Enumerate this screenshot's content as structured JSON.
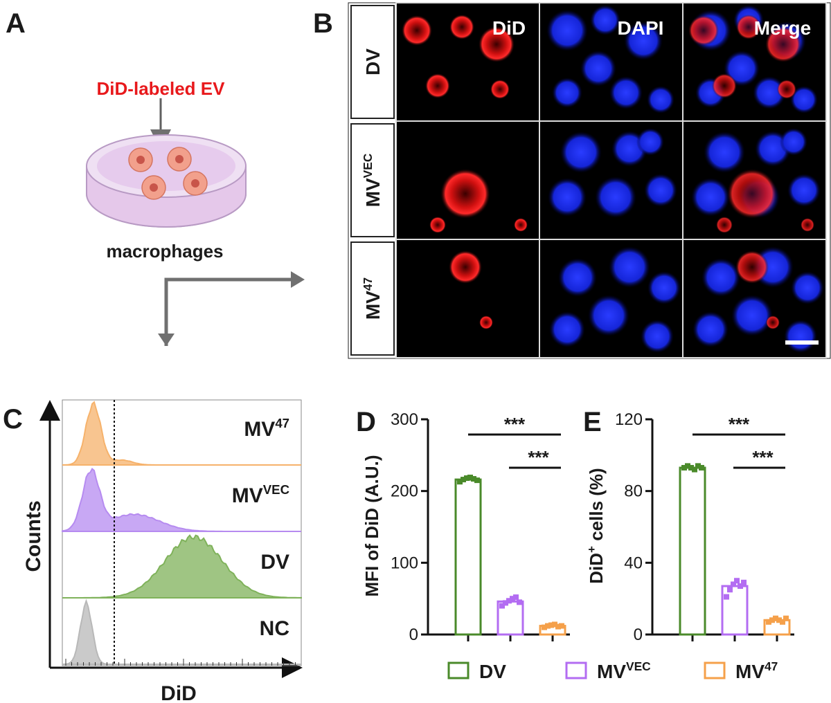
{
  "panels": {
    "A": {
      "label": "A",
      "ev_label": "DiD-labeled EV",
      "cells_label": "macrophages",
      "ev_color": "#e8191c"
    },
    "B": {
      "label": "B",
      "channels": [
        "DiD",
        "DAPI",
        "Merge"
      ],
      "rows": [
        {
          "label": "DV",
          "sup": ""
        },
        {
          "label": "MV",
          "sup": "VEC"
        },
        {
          "label": "MV",
          "sup": "47"
        }
      ]
    },
    "C": {
      "label": "C",
      "ylabel": "Counts",
      "xlabel": "DiD",
      "tracks": [
        {
          "label": "MV",
          "sup": "47",
          "color": "#f6b26b"
        },
        {
          "label": "MV",
          "sup": "VEC",
          "color": "#b68bf0"
        },
        {
          "label": "DV",
          "sup": "",
          "color": "#7fb25a"
        },
        {
          "label": "NC",
          "sup": "",
          "color": "#b8b8b8"
        }
      ]
    },
    "D": {
      "label": "D"
    },
    "E": {
      "label": "E"
    }
  },
  "legend": [
    {
      "label": "DV",
      "sup": "",
      "color": "#4a8a2a"
    },
    {
      "label": "MV",
      "sup": "VEC",
      "color": "#b36cf2"
    },
    {
      "label": "MV",
      "sup": "47",
      "color": "#f5a04a"
    }
  ],
  "chart_data": [
    {
      "panel": "D",
      "type": "bar",
      "ylabel": "MFI of DiD (A.U.)",
      "categories": [
        "DV",
        "MVVEC",
        "MV47"
      ],
      "values": [
        216,
        46,
        12
      ],
      "points": [
        [
          213,
          216,
          218,
          219,
          217,
          215
        ],
        [
          40,
          44,
          47,
          50,
          52,
          45
        ],
        [
          10,
          12,
          13,
          14,
          11,
          12
        ]
      ],
      "colors": [
        "#4a8a2a",
        "#b36cf2",
        "#f5a04a"
      ],
      "ylim": [
        0,
        300
      ],
      "yticks": [
        0,
        100,
        200,
        300
      ],
      "significance": [
        {
          "from": 0,
          "to": 2,
          "text": "***"
        },
        {
          "from": 1,
          "to": 2,
          "text": "***"
        }
      ]
    },
    {
      "panel": "E",
      "type": "bar",
      "ylabel": "DiD+ cells (%)",
      "categories": [
        "DV",
        "MVVEC",
        "MV47"
      ],
      "values": [
        93,
        27,
        8
      ],
      "points": [
        [
          93,
          94,
          93,
          92,
          94,
          93
        ],
        [
          21,
          25,
          28,
          30,
          27,
          29
        ],
        [
          7,
          8,
          9,
          8,
          7,
          9
        ]
      ],
      "colors": [
        "#4a8a2a",
        "#b36cf2",
        "#f5a04a"
      ],
      "ylim": [
        0,
        120
      ],
      "yticks": [
        0,
        40,
        80,
        120
      ],
      "significance": [
        {
          "from": 0,
          "to": 2,
          "text": "***"
        },
        {
          "from": 1,
          "to": 2,
          "text": "***"
        }
      ]
    }
  ]
}
